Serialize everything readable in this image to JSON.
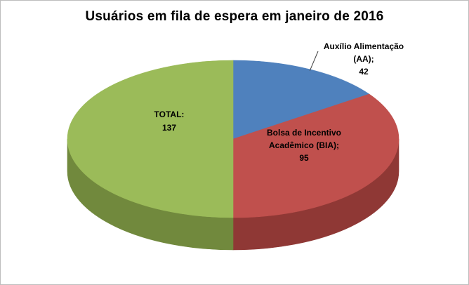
{
  "window": {
    "background": "#FFFFFF",
    "border_color": "#BDBDBD"
  },
  "title": "Usuários em fila de espera em janeiro de 2016",
  "chart_data": {
    "type": "pie",
    "title": "Usuários em fila de espera em janeiro de 2016",
    "effect": "3d",
    "start_angle_deg": -90,
    "direction": "clockwise",
    "legend_position": "none",
    "slices": [
      {
        "label": "Auxílio Alimentação (AA)",
        "value": 42,
        "color": "#4F81BD",
        "side_color": "#31567E"
      },
      {
        "label": "Bolsa de Incentivo Acadêmico (BIA)",
        "value": 95,
        "color": "#C0504D",
        "side_color": "#8F3835"
      },
      {
        "label": "TOTAL",
        "value": 137,
        "color": "#9BBB59",
        "side_color": "#71893D"
      }
    ],
    "leader_line_color": "#404040"
  },
  "labels": {
    "aa": {
      "line1": "Auxílio Alimentação",
      "line2": "(AA);",
      "line3": "42"
    },
    "bia": {
      "line1": "Bolsa de Incentivo",
      "line2": "Acadêmico (BIA);",
      "line3": "95"
    },
    "total": {
      "line1": "TOTAL:",
      "line2": "137"
    }
  }
}
